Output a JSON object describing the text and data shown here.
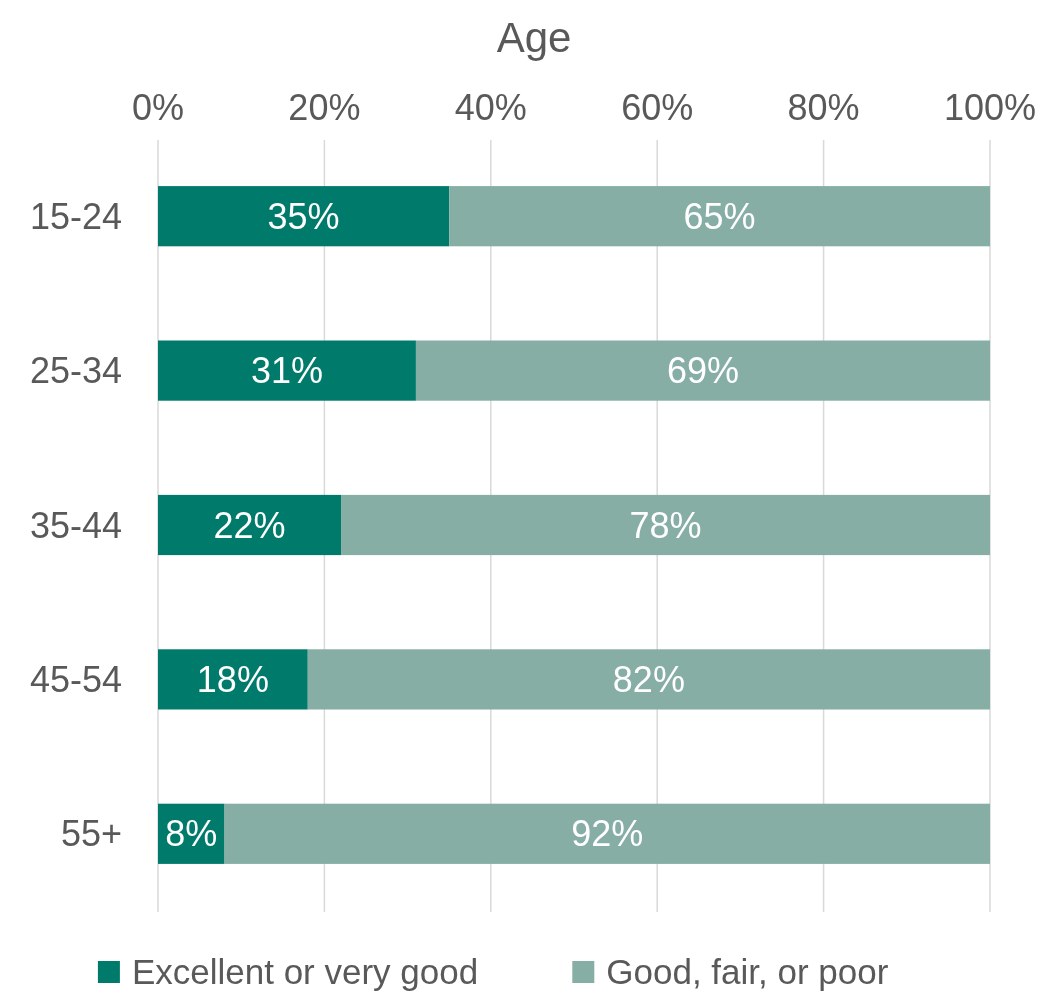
{
  "chart_data": {
    "type": "bar",
    "title": "Age",
    "orientation": "horizontal",
    "stacked": true,
    "categories": [
      "15-24",
      "25-34",
      "35-44",
      "45-54",
      "55+"
    ],
    "series": [
      {
        "name": "Excellent or very good",
        "color": "#007a6b",
        "values": [
          35,
          31,
          22,
          18,
          8
        ],
        "value_labels": [
          "35%",
          "31%",
          "22%",
          "18%",
          "8%"
        ]
      },
      {
        "name": "Good, fair, or poor",
        "color": "#86aea5",
        "values": [
          65,
          69,
          78,
          82,
          92
        ],
        "value_labels": [
          "65%",
          "69%",
          "78%",
          "82%",
          "92%"
        ]
      }
    ],
    "xlim": [
      0,
      100
    ],
    "xticks": [
      {
        "value": 0,
        "label": "0%"
      },
      {
        "value": 20,
        "label": "20%"
      },
      {
        "value": 40,
        "label": "40%"
      },
      {
        "value": 60,
        "label": "60%"
      },
      {
        "value": 80,
        "label": "80%"
      },
      {
        "value": 100,
        "label": "100%"
      }
    ],
    "grid": "x",
    "legend": "bottom"
  }
}
